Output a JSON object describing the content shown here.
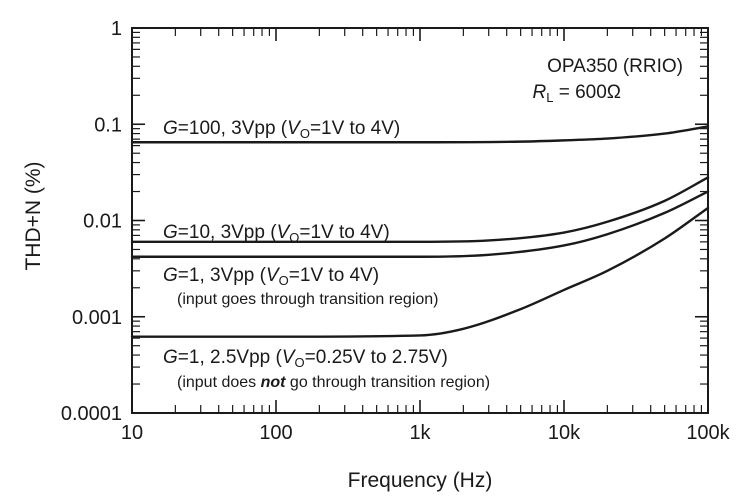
{
  "chart_data": {
    "type": "line",
    "title": "",
    "xlabel": "Frequency (Hz)",
    "ylabel": "THD+N (%)",
    "x_scale": "log",
    "y_scale": "log",
    "xlim": [
      10,
      100000
    ],
    "ylim": [
      0.0001,
      1
    ],
    "grid": false,
    "x_ticks": [
      10,
      100,
      1000,
      10000,
      100000
    ],
    "x_tick_labels": [
      "10",
      "100",
      "1k",
      "10k",
      "100k"
    ],
    "y_ticks": [
      0.0001,
      0.001,
      0.01,
      0.1,
      1
    ],
    "y_tick_labels": [
      "0.0001",
      "0.001",
      "0.01",
      "0.1",
      "1"
    ],
    "device_label": {
      "line1": "OPA350 (RRIO)",
      "line2_prefix": "R",
      "line2_sub": "L",
      "line2_rest": " = 600Ω"
    },
    "series": [
      {
        "gain": "G",
        "label_main": "=100, 3Vpp (",
        "label_v": "V",
        "label_v_sub": "O",
        "label_tail": "=1V to 4V)",
        "x": [
          10,
          100,
          1000,
          5000,
          10000,
          20000,
          50000,
          100000
        ],
        "y": [
          0.065,
          0.065,
          0.065,
          0.066,
          0.068,
          0.071,
          0.08,
          0.095
        ]
      },
      {
        "gain": "G",
        "label_main": "=10, 3Vpp (",
        "label_v": "V",
        "label_v_sub": "O",
        "label_tail": "=1V to 4V)",
        "x": [
          10,
          100,
          1000,
          3000,
          10000,
          20000,
          50000,
          100000
        ],
        "y": [
          0.006,
          0.006,
          0.006,
          0.0062,
          0.0075,
          0.0097,
          0.016,
          0.028
        ]
      },
      {
        "gain": "G",
        "label_main": "=1, 3Vpp (",
        "label_v": "V",
        "label_v_sub": "O",
        "label_tail": "=1V to 4V)",
        "label_note": "(input goes through transition region)",
        "x": [
          10,
          100,
          1000,
          3000,
          10000,
          20000,
          50000,
          100000
        ],
        "y": [
          0.0042,
          0.0042,
          0.0042,
          0.0044,
          0.0055,
          0.0072,
          0.012,
          0.02
        ]
      },
      {
        "gain": "G",
        "label_main": "=1, 2.5Vpp (",
        "label_v": "V",
        "label_v_sub": "O",
        "label_tail": "=0.25V to 2.75V)",
        "label_note_pre": "(input does ",
        "label_note_em": "not",
        "label_note_post": " go through transition region)",
        "x": [
          10,
          100,
          1000,
          2000,
          5000,
          10000,
          20000,
          50000,
          100000
        ],
        "y": [
          0.00062,
          0.00062,
          0.00064,
          0.00075,
          0.0012,
          0.0019,
          0.003,
          0.0065,
          0.0135
        ]
      }
    ]
  }
}
